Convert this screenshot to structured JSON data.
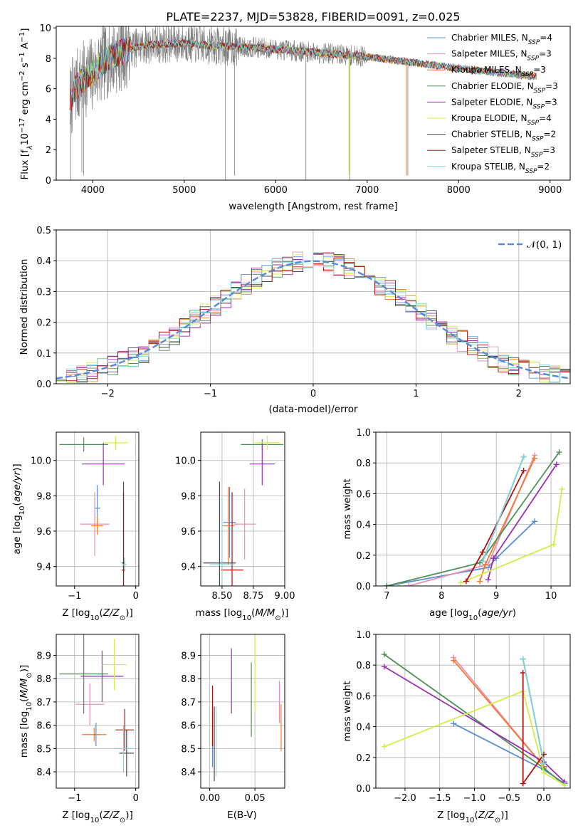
{
  "colors": {
    "chabrier_miles": "#5B8BD8",
    "salpeter_miles": "#E88FB6",
    "kroupa_miles": "#F07C2E",
    "chabrier_elodie": "#4F8F5A",
    "salpeter_elodie": "#9A2FB0",
    "kroupa_elodie": "#D4EC4A",
    "chabrier_stelib": "#4A4A4A",
    "salpeter_stelib": "#B01010",
    "kroupa_stelib": "#7FD6DC",
    "data_gray": "#808080"
  },
  "models": [
    {
      "key": "chabrier_miles",
      "legend": "Chabrier MILES, N",
      "n": "4"
    },
    {
      "key": "salpeter_miles",
      "legend": "Salpeter MILES, N",
      "n": "3"
    },
    {
      "key": "kroupa_miles",
      "legend": "Kroupa MILES, N",
      "n": "3"
    },
    {
      "key": "chabrier_elodie",
      "legend": "Chabrier ELODIE, N",
      "n": "3"
    },
    {
      "key": "salpeter_elodie",
      "legend": "Salpeter ELODIE, N",
      "n": "3"
    },
    {
      "key": "kroupa_elodie",
      "legend": "Kroupa ELODIE, N",
      "n": "4"
    },
    {
      "key": "chabrier_stelib",
      "legend": "Chabrier STELIB, N",
      "n": "2"
    },
    {
      "key": "salpeter_stelib",
      "legend": "Salpeter STELIB, N",
      "n": "3"
    },
    {
      "key": "kroupa_stelib",
      "legend": "Kroupa STELIB, N",
      "n": "2"
    }
  ],
  "chart_data": [
    {
      "id": "spectrum",
      "type": "line",
      "title": "PLATE=2237, MJD=53828, FIBERID=0091, z=0.025",
      "xlabel": "wavelength [Angstrom, rest frame]",
      "ylabel": "Flux [f",
      "xlim": [
        3600,
        9220
      ],
      "ylim": [
        0,
        10.1
      ],
      "xticks": [
        4000,
        5000,
        6000,
        7000,
        8000,
        9000
      ],
      "yticks": [
        0,
        2,
        4,
        6,
        8,
        10
      ],
      "legend_position": "top-right",
      "continuum": [
        [
          3750,
          5.0
        ],
        [
          3800,
          6.0
        ],
        [
          3900,
          6.6
        ],
        [
          4000,
          7.0
        ],
        [
          4100,
          7.6
        ],
        [
          4200,
          8.1
        ],
        [
          4400,
          8.6
        ],
        [
          4600,
          8.9
        ],
        [
          5000,
          9.0
        ],
        [
          5400,
          8.8
        ],
        [
          5800,
          8.7
        ],
        [
          6200,
          8.5
        ],
        [
          6600,
          8.3
        ],
        [
          7000,
          8.1
        ],
        [
          7400,
          7.8
        ],
        [
          7800,
          7.5
        ],
        [
          8200,
          7.2
        ],
        [
          8600,
          6.95
        ],
        [
          8850,
          6.8
        ]
      ],
      "notes": "observed spectrum (gray) with nine model fits overlaid"
    },
    {
      "id": "residuals",
      "type": "line",
      "xlabel": "(data-model)/error",
      "ylabel": "Normed distribution",
      "xlim": [
        -2.5,
        2.5
      ],
      "ylim": [
        0,
        0.5
      ],
      "xticks": [
        -2,
        -1,
        0,
        1,
        2
      ],
      "yticks": [
        0,
        0.1,
        0.2,
        0.3,
        0.4,
        0.5
      ],
      "legend": "𝒩(0, 1)",
      "legend_position": "top-right",
      "gaussian": {
        "mean": 0,
        "sigma": 1
      },
      "bin_width": 0.1,
      "notes": "nine step histograms of normalized residuals, roughly following the unit Gaussian"
    },
    {
      "id": "z_age",
      "type": "scatter",
      "xlabel": "Z [log",
      "ylabel": "age  [log",
      "xlim": [
        -1.3,
        0.05
      ],
      "ylim": [
        9.29,
        10.16
      ],
      "xticks": [
        -1,
        0
      ],
      "yticks": [
        9.4,
        9.6,
        9.8,
        10.0
      ],
      "points": [
        {
          "key": "chabrier_miles",
          "x": -0.63,
          "xerr": 0.05,
          "y": 9.73,
          "yerr": 0.13
        },
        {
          "key": "salpeter_miles",
          "x": -0.67,
          "xerr": 0.24,
          "y": 9.64,
          "yerr": 0.18
        },
        {
          "key": "kroupa_miles",
          "x": -0.63,
          "xerr": 0.1,
          "y": 9.63,
          "yerr": 0.05
        },
        {
          "key": "chabrier_elodie",
          "x": -0.85,
          "xerr": 0.4,
          "y": 10.09,
          "yerr": 0.04
        },
        {
          "key": "salpeter_elodie",
          "x": -0.53,
          "xerr": 0.35,
          "y": 9.98,
          "yerr": 0.12
        },
        {
          "key": "kroupa_elodie",
          "x": -0.33,
          "xerr": 0.2,
          "y": 10.1,
          "yerr": 0.04
        },
        {
          "key": "chabrier_stelib",
          "x": -0.2,
          "xerr": 0.03,
          "y": 9.42,
          "yerr": 0.46
        },
        {
          "key": "salpeter_stelib",
          "x": -0.2,
          "xerr": 0.03,
          "y": 9.38,
          "yerr": 0.44
        },
        {
          "key": "kroupa_stelib",
          "x": -0.18,
          "xerr": 0.03,
          "y": 9.41,
          "yerr": 0.04
        }
      ]
    },
    {
      "id": "mass_age",
      "type": "scatter",
      "xlabel": "mass [log",
      "ylabel": "",
      "xlim": [
        8.33,
        9.0
      ],
      "ylim": [
        9.29,
        10.16
      ],
      "xticks": [
        8.5,
        8.75,
        9.0
      ],
      "yticks": [
        9.4,
        9.6,
        9.8,
        10.0
      ],
      "points": [
        {
          "key": "chabrier_miles",
          "x": 8.56,
          "xerr": 0.05,
          "y": 9.65,
          "yerr": 0.2
        },
        {
          "key": "salpeter_miles",
          "x": 8.68,
          "xerr": 0.09,
          "y": 9.64,
          "yerr": 0.2
        },
        {
          "key": "kroupa_miles",
          "x": 8.55,
          "xerr": 0.05,
          "y": 9.63,
          "yerr": 0.22
        },
        {
          "key": "chabrier_elodie",
          "x": 8.82,
          "xerr": 0.17,
          "y": 10.09,
          "yerr": 0.03
        },
        {
          "key": "salpeter_elodie",
          "x": 8.82,
          "xerr": 0.1,
          "y": 9.98,
          "yerr": 0.12
        },
        {
          "key": "kroupa_elodie",
          "x": 8.86,
          "xerr": 0.1,
          "y": 10.1,
          "yerr": 0.04
        },
        {
          "key": "chabrier_stelib",
          "x": 8.48,
          "xerr": 0.13,
          "y": 9.42,
          "yerr": 0.46
        },
        {
          "key": "salpeter_stelib",
          "x": 8.58,
          "xerr": 0.09,
          "y": 9.38,
          "yerr": 0.44
        },
        {
          "key": "kroupa_stelib",
          "x": 8.5,
          "xerr": 0.1,
          "y": 9.41,
          "yerr": 0.38
        }
      ]
    },
    {
      "id": "age_weight",
      "type": "line",
      "xlabel": "age  [log",
      "ylabel": "mass weight",
      "xlim": [
        6.8,
        10.35
      ],
      "ylim": [
        0,
        1.0
      ],
      "xticks": [
        7,
        8,
        9,
        10
      ],
      "yticks": [
        0.0,
        0.2,
        0.4,
        0.6,
        0.8,
        1.0
      ],
      "series": [
        {
          "key": "chabrier_miles",
          "points": [
            [
              7.0,
              0.0
            ],
            [
              8.85,
              0.12
            ],
            [
              9.0,
              0.18
            ],
            [
              9.7,
              0.42
            ]
          ]
        },
        {
          "key": "salpeter_miles",
          "points": [
            [
              7.4,
              0.0
            ],
            [
              8.85,
              0.14
            ],
            [
              9.7,
              0.85
            ]
          ]
        },
        {
          "key": "kroupa_miles",
          "points": [
            [
              8.7,
              0.03
            ],
            [
              8.8,
              0.14
            ],
            [
              9.7,
              0.83
            ]
          ]
        },
        {
          "key": "chabrier_elodie",
          "points": [
            [
              7.0,
              0.0
            ],
            [
              8.7,
              0.15
            ],
            [
              10.15,
              0.87
            ]
          ]
        },
        {
          "key": "salpeter_elodie",
          "points": [
            [
              8.85,
              0.04
            ],
            [
              8.95,
              0.18
            ],
            [
              10.1,
              0.79
            ]
          ]
        },
        {
          "key": "kroupa_elodie",
          "points": [
            [
              8.35,
              0.02
            ],
            [
              10.05,
              0.27
            ],
            [
              10.2,
              0.63
            ]
          ]
        },
        {
          "key": "chabrier_stelib",
          "points": [
            [
              8.75,
              0.16
            ],
            [
              9.5,
              0.84
            ]
          ]
        },
        {
          "key": "salpeter_stelib",
          "points": [
            [
              8.45,
              0.03
            ],
            [
              8.75,
              0.22
            ],
            [
              9.5,
              0.75
            ]
          ]
        },
        {
          "key": "kroupa_stelib",
          "points": [
            [
              8.75,
              0.16
            ],
            [
              9.5,
              0.84
            ]
          ]
        }
      ]
    },
    {
      "id": "z_mass",
      "type": "scatter",
      "xlabel": "Z [log",
      "ylabel": "mass [log",
      "xlim": [
        -1.3,
        0.05
      ],
      "ylim": [
        8.33,
        8.99
      ],
      "xticks": [
        -1,
        0
      ],
      "yticks": [
        8.4,
        8.5,
        8.6,
        8.7,
        8.8,
        8.9
      ],
      "points": [
        {
          "key": "chabrier_miles",
          "x": -0.65,
          "xerr": 0.05,
          "y": 8.56,
          "yerr": 0.05
        },
        {
          "key": "salpeter_miles",
          "x": -0.75,
          "xerr": 0.24,
          "y": 8.69,
          "yerr": 0.09
        },
        {
          "key": "kroupa_miles",
          "x": -0.68,
          "xerr": 0.2,
          "y": 8.56,
          "yerr": 0.03
        },
        {
          "key": "chabrier_elodie",
          "x": -0.85,
          "xerr": 0.4,
          "y": 8.82,
          "yerr": 0.17
        },
        {
          "key": "salpeter_elodie",
          "x": -0.55,
          "xerr": 0.35,
          "y": 8.81,
          "yerr": 0.11
        },
        {
          "key": "kroupa_elodie",
          "x": -0.35,
          "xerr": 0.2,
          "y": 8.86,
          "yerr": 0.11
        },
        {
          "key": "chabrier_stelib",
          "x": -0.15,
          "xerr": 0.12,
          "y": 8.48,
          "yerr": 0.1
        },
        {
          "key": "salpeter_stelib",
          "x": -0.18,
          "xerr": 0.15,
          "y": 8.58,
          "yerr": 0.09
        },
        {
          "key": "kroupa_stelib",
          "x": -0.2,
          "xerr": 0.15,
          "y": 8.5,
          "yerr": 0.1
        }
      ]
    },
    {
      "id": "ebv_mass",
      "type": "scatter",
      "xlabel": "E(B-V)",
      "ylabel": "",
      "xlim": [
        -0.01,
        0.083
      ],
      "ylim": [
        8.33,
        8.99
      ],
      "xticks": [
        0.0,
        0.05
      ],
      "yticks": [
        8.4,
        8.5,
        8.6,
        8.7,
        8.8,
        8.9
      ],
      "points": [
        {
          "key": "chabrier_miles",
          "x": 0.003,
          "y": 8.55,
          "yerr": 0.13
        },
        {
          "key": "salpeter_miles",
          "x": 0.077,
          "y": 8.7,
          "yerr": 0.09
        },
        {
          "key": "kroupa_miles",
          "x": 0.079,
          "y": 8.59,
          "yerr": 0.1
        },
        {
          "key": "chabrier_elodie",
          "x": 0.046,
          "y": 8.71,
          "yerr": 0.16
        },
        {
          "key": "salpeter_elodie",
          "x": 0.024,
          "y": 8.79,
          "yerr": 0.14
        },
        {
          "key": "kroupa_elodie",
          "x": 0.05,
          "y": 8.82,
          "yerr": 0.16
        },
        {
          "key": "chabrier_stelib",
          "x": 0.005,
          "y": 8.52,
          "yerr": 0.16
        },
        {
          "key": "salpeter_stelib",
          "x": 0.003,
          "y": 8.64,
          "yerr": 0.13
        },
        {
          "key": "kroupa_stelib",
          "x": 0.007,
          "y": 8.53,
          "yerr": 0.15
        }
      ]
    },
    {
      "id": "z_weight",
      "type": "line",
      "xlabel": "Z [log",
      "ylabel": "mass weight",
      "xlim": [
        -2.42,
        0.38
      ],
      "ylim": [
        0,
        1.0
      ],
      "xticks": [
        -2.0,
        -1.5,
        -1.0,
        -0.5,
        0.0
      ],
      "series": [
        {
          "key": "chabrier_miles",
          "points": [
            [
              -1.3,
              0.42
            ],
            [
              0.0,
              0.12
            ],
            [
              0.3,
              0.03
            ]
          ]
        },
        {
          "key": "salpeter_miles",
          "points": [
            [
              -1.3,
              0.85
            ],
            [
              0.0,
              0.14
            ]
          ]
        },
        {
          "key": "kroupa_miles",
          "points": [
            [
              -1.3,
              0.83
            ],
            [
              0.0,
              0.14
            ]
          ]
        },
        {
          "key": "chabrier_elodie",
          "points": [
            [
              -2.3,
              0.87
            ],
            [
              0.0,
              0.13
            ],
            [
              0.3,
              0.02
            ]
          ]
        },
        {
          "key": "salpeter_elodie",
          "points": [
            [
              -2.3,
              0.79
            ],
            [
              0.0,
              0.17
            ],
            [
              0.3,
              0.04
            ]
          ]
        },
        {
          "key": "kroupa_elodie",
          "points": [
            [
              -2.3,
              0.27
            ],
            [
              -0.3,
              0.63
            ],
            [
              0.0,
              0.1
            ],
            [
              0.3,
              0.02
            ]
          ]
        },
        {
          "key": "chabrier_stelib",
          "points": [
            [
              -0.3,
              0.84
            ],
            [
              0.0,
              0.16
            ]
          ]
        },
        {
          "key": "salpeter_stelib",
          "points": [
            [
              -0.3,
              0.75
            ],
            [
              -0.3,
              0.03
            ],
            [
              0.0,
              0.22
            ]
          ]
        },
        {
          "key": "kroupa_stelib",
          "points": [
            [
              -0.3,
              0.84
            ],
            [
              0.0,
              0.16
            ]
          ]
        }
      ]
    }
  ]
}
